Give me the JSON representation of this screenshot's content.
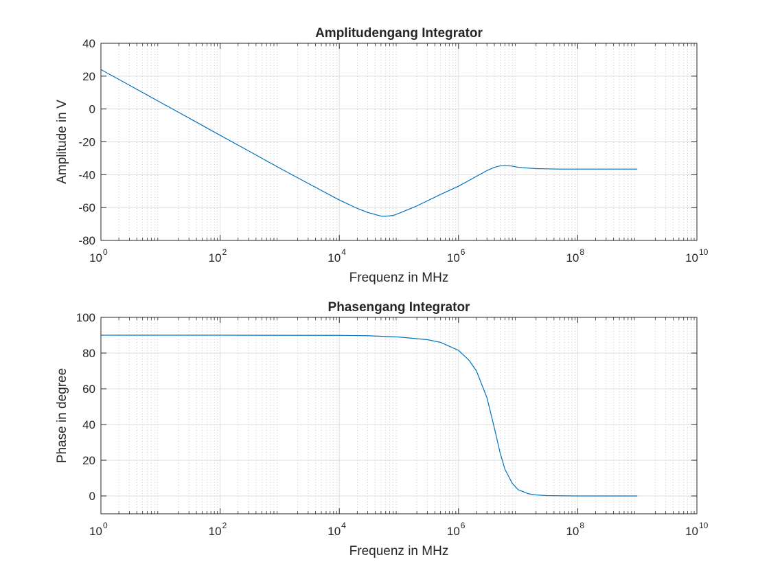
{
  "chart_data": [
    {
      "type": "line",
      "title": "Amplitudengang Integrator",
      "xlabel": "Frequenz in MHz",
      "ylabel": "Amplitude in V",
      "xscale": "log",
      "xlim": [
        1,
        10000000000
      ],
      "ylim": [
        -80,
        40
      ],
      "grid": "on",
      "minor_grid": "on",
      "xticks": [
        {
          "base": "10",
          "exp": "0",
          "value": 1
        },
        {
          "base": "10",
          "exp": "2",
          "value": 100
        },
        {
          "base": "10",
          "exp": "4",
          "value": 10000
        },
        {
          "base": "10",
          "exp": "6",
          "value": 1000000
        },
        {
          "base": "10",
          "exp": "8",
          "value": 100000000
        },
        {
          "base": "10",
          "exp": "10",
          "value": 10000000000
        }
      ],
      "yticks": [
        {
          "label": "40",
          "value": 40
        },
        {
          "label": "20",
          "value": 20
        },
        {
          "label": "0",
          "value": 0
        },
        {
          "label": "-20",
          "value": -20
        },
        {
          "label": "-40",
          "value": -40
        },
        {
          "label": "-60",
          "value": -60
        },
        {
          "label": "-80",
          "value": -80
        }
      ],
      "line_color": "#0072BD",
      "series": [
        {
          "x": [
            1,
            3,
            10,
            30,
            100,
            300,
            1000,
            3000,
            10000,
            20000,
            30000,
            50000,
            60000,
            80000,
            100000,
            200000,
            500000,
            1000000,
            2000000,
            3000000,
            4000000,
            5000000,
            6000000,
            8000000,
            10000000,
            20000000,
            50000000,
            100000000,
            1000000000
          ],
          "y": [
            24,
            14.5,
            4,
            -5.5,
            -16,
            -25.5,
            -36,
            -45.3,
            -55.4,
            -60.5,
            -63,
            -65.2,
            -65.3,
            -64.8,
            -63.5,
            -59,
            -52,
            -47,
            -41,
            -37.5,
            -35.5,
            -34.6,
            -34.4,
            -34.8,
            -35.5,
            -36.3,
            -36.6,
            -36.6,
            -36.6
          ]
        }
      ]
    },
    {
      "type": "line",
      "title": "Phasengang Integrator",
      "xlabel": "Frequenz in MHz",
      "ylabel": "Phase in degree",
      "xscale": "log",
      "xlim": [
        1,
        10000000000
      ],
      "ylim": [
        -10,
        100
      ],
      "grid": "on",
      "minor_grid": "on",
      "xticks": [
        {
          "base": "10",
          "exp": "0",
          "value": 1
        },
        {
          "base": "10",
          "exp": "2",
          "value": 100
        },
        {
          "base": "10",
          "exp": "4",
          "value": 10000
        },
        {
          "base": "10",
          "exp": "6",
          "value": 1000000
        },
        {
          "base": "10",
          "exp": "8",
          "value": 100000000
        },
        {
          "base": "10",
          "exp": "10",
          "value": 10000000000
        }
      ],
      "yticks": [
        {
          "label": "100",
          "value": 100
        },
        {
          "label": "80",
          "value": 80
        },
        {
          "label": "60",
          "value": 60
        },
        {
          "label": "40",
          "value": 40
        },
        {
          "label": "20",
          "value": 20
        },
        {
          "label": "0",
          "value": 0
        }
      ],
      "line_color": "#0072BD",
      "series": [
        {
          "x": [
            1,
            100,
            10000,
            30000,
            100000,
            300000,
            500000,
            1000000,
            1500000,
            2000000,
            3000000,
            4000000,
            5000000,
            6000000,
            8000000,
            10000000,
            15000000,
            20000000,
            30000000,
            50000000,
            100000000,
            1000000000
          ],
          "y": [
            90,
            90,
            89.9,
            89.7,
            89,
            87.5,
            86,
            81.5,
            76,
            70,
            55,
            38,
            24,
            15,
            7,
            3.5,
            1.2,
            0.6,
            0.2,
            0.1,
            0,
            0
          ]
        }
      ]
    }
  ]
}
